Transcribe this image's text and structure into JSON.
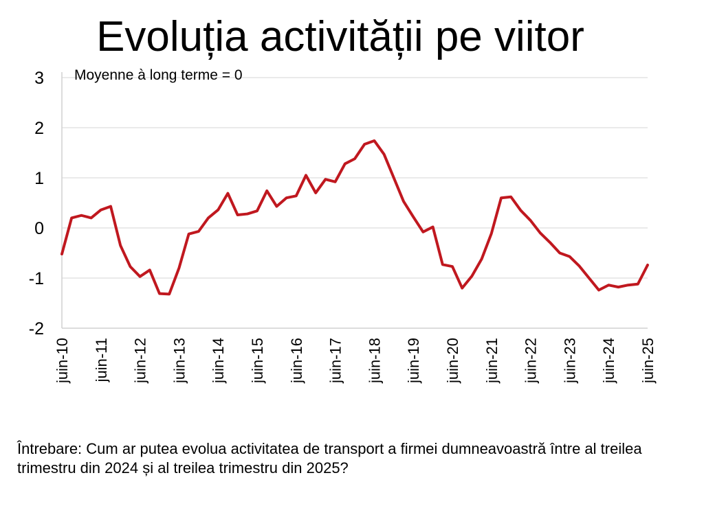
{
  "title": "Evoluția activității pe viitor",
  "question": "Întrebare: Cum ar putea evolua activitatea de transport a firmei dumneavoastră între al treilea trimestru din 2024 și al treilea trimestru din 2025?",
  "chart_data": {
    "type": "line",
    "annotation": "Moyenne à long terme = 0",
    "xlabel": "",
    "ylabel": "",
    "ylim": [
      -2,
      3
    ],
    "yticks": [
      3,
      2,
      1,
      0,
      -1,
      -2
    ],
    "grid": true,
    "line_color": "#c0181f",
    "x_tick_labels": [
      "juin-10",
      "juin-11",
      "juin-12",
      "juin-13",
      "juin-14",
      "juin-15",
      "juin-16",
      "juin-17",
      "juin-18",
      "juin-19",
      "juin-20",
      "juin-21",
      "juin-22",
      "juin-23",
      "juin-24",
      "juin-25"
    ],
    "series": [
      {
        "values": [
          -0.52,
          0.2,
          0.25,
          0.2,
          0.36,
          0.43,
          -0.35,
          -0.77,
          -0.97,
          -0.84,
          -1.31,
          -1.32,
          -0.8,
          -0.12,
          -0.07,
          0.2,
          0.36,
          0.69,
          0.26,
          0.28,
          0.34,
          0.74,
          0.43,
          0.6,
          0.64,
          1.05,
          0.7,
          0.97,
          0.92,
          1.28,
          1.38,
          1.67,
          1.74,
          1.47,
          1.0,
          0.53,
          0.22,
          -0.08,
          0.02,
          -0.73,
          -0.77,
          -1.2,
          -0.96,
          -0.62,
          -0.11,
          0.6,
          0.62,
          0.35,
          0.15,
          -0.1,
          -0.29,
          -0.5,
          -0.57,
          -0.76,
          -1.0,
          -1.24,
          -1.14,
          -1.18,
          -1.14,
          -1.12,
          -0.74
        ]
      }
    ]
  }
}
